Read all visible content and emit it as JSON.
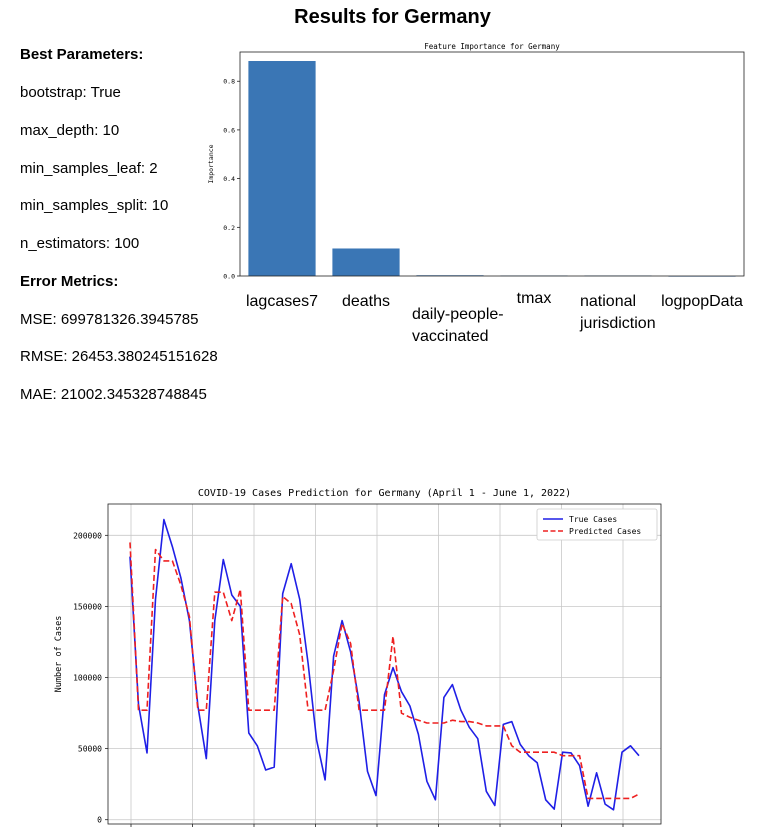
{
  "page": {
    "title": "Results for Germany",
    "params_header": "Best Parameters:",
    "params": [
      "bootstrap: True",
      "max_depth: 10",
      "min_samples_leaf: 2",
      "min_samples_split: 10",
      "n_estimators: 100"
    ],
    "metrics_header": "Error Metrics:",
    "metrics": [
      "MSE: 699781326.3945785",
      "RMSE: 26453.380245151628",
      "MAE: 21002.345328748845"
    ]
  },
  "chart_data": [
    {
      "type": "bar",
      "title": "Feature Importance for Germany",
      "ylabel": "Importance",
      "categories": [
        "lagcases7",
        "deaths",
        "daily-people-vaccinated",
        "tmax",
        "national jurisdiction",
        "logpopData"
      ],
      "category_lines": [
        [
          "lagcases7"
        ],
        [
          "deaths"
        ],
        [
          "daily-people-",
          "vaccinated"
        ],
        [
          "tmax"
        ],
        [
          "national",
          "jurisdiction"
        ],
        [
          "logpopData"
        ]
      ],
      "values": [
        0.883,
        0.113,
        0.003,
        0.002,
        0.002,
        0.0
      ],
      "ylim": [
        0,
        0.92
      ],
      "yticks": [
        "0.0",
        "0.2",
        "0.4",
        "0.6",
        "0.8"
      ],
      "color": "#3a76b5",
      "grid": false
    },
    {
      "type": "line",
      "title": "COVID-19 Cases Prediction for Germany (April 1 - June 1, 2022)",
      "ylabel": "Number of Cases",
      "ylim": [
        -3000,
        222000
      ],
      "yticks": [
        "0",
        "50000",
        "100000",
        "150000",
        "200000"
      ],
      "grid": true,
      "legend": "top-right",
      "series": [
        {
          "name": "True Cases",
          "color": "#1f1fe6",
          "style": "solid",
          "values": [
            185000,
            81000,
            47000,
            155000,
            211000,
            192000,
            170000,
            140000,
            80000,
            43000,
            140000,
            183000,
            158000,
            150000,
            61000,
            52000,
            35000,
            37000,
            159000,
            180000,
            155000,
            110000,
            56000,
            28000,
            115000,
            140000,
            118000,
            83000,
            34000,
            17000,
            88000,
            107000,
            90000,
            80000,
            60000,
            27000,
            14000,
            86000,
            95000,
            77000,
            65000,
            57000,
            20000,
            10000,
            67000,
            69000,
            53000,
            45000,
            40000,
            14000,
            7500,
            47500,
            47000,
            38000,
            9500,
            33000,
            11000,
            7000,
            47500,
            52000,
            45000
          ]
        },
        {
          "name": "Predicted Cases",
          "color": "#ee2020",
          "style": "dashed",
          "values": [
            195000,
            77000,
            77000,
            190000,
            182000,
            182000,
            165000,
            143000,
            77000,
            77000,
            160000,
            160000,
            140000,
            162000,
            77000,
            77000,
            77000,
            77000,
            157000,
            152000,
            130000,
            77000,
            77000,
            77000,
            105000,
            138000,
            124000,
            77000,
            77000,
            77000,
            77000,
            129000,
            75000,
            72000,
            70000,
            68000,
            68000,
            68000,
            70000,
            69000,
            69000,
            68000,
            66000,
            66000,
            66000,
            52000,
            47500,
            47500,
            47500,
            47500,
            47500,
            45000,
            45000,
            45000,
            15000,
            15000,
            15000,
            15000,
            15000,
            15000,
            18000
          ]
        }
      ]
    }
  ]
}
